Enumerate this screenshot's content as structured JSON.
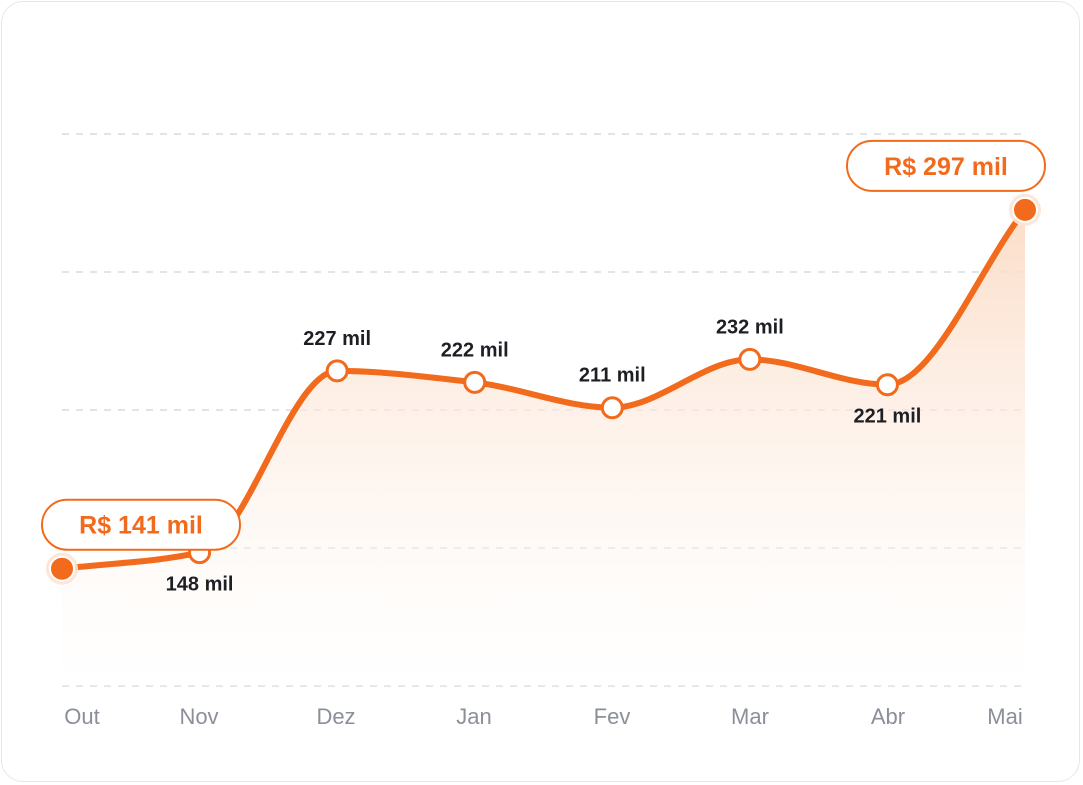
{
  "colors": {
    "accent": "#f26a1b",
    "area_top": "#fbd9c2",
    "area_bottom": "#ffffff",
    "grid": "#d9dbe0",
    "tick_text": "#8b8f99",
    "label_text": "#1d1f24"
  },
  "chart_data": {
    "type": "area",
    "title": "",
    "xlabel": "",
    "ylabel": "",
    "categories": [
      "Out",
      "Nov",
      "Dez",
      "Jan",
      "Fev",
      "Mar",
      "Abr",
      "Mai"
    ],
    "series": [
      {
        "values": [
          141,
          148,
          227,
          222,
          211,
          232,
          221,
          297
        ]
      }
    ],
    "unit": "mil",
    "ylim": [
      90,
      330
    ],
    "grid": true,
    "data_labels": [
      "",
      "148 mil",
      "227 mil",
      "222 mil",
      "211 mil",
      "232 mil",
      "221 mil",
      ""
    ],
    "data_label_position": [
      "above",
      "below",
      "above",
      "above",
      "above",
      "above",
      "below",
      "above"
    ],
    "callouts": [
      {
        "index": 0,
        "text": "R$ 141 mil"
      },
      {
        "index": 7,
        "text": "R$ 297 mil"
      }
    ]
  }
}
